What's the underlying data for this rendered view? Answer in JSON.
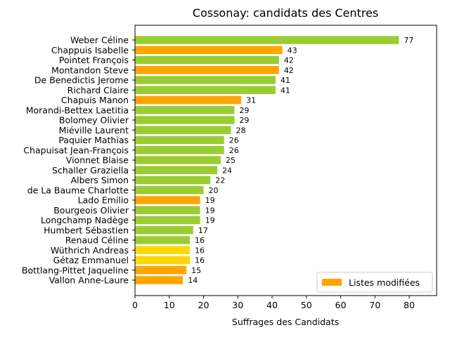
{
  "chart_data": {
    "type": "bar",
    "orientation": "horizontal",
    "title": "Cossonay: candidats des Centres",
    "xlabel": "Suffrages des Candidats",
    "ylabel": "",
    "xlim": [
      0,
      88
    ],
    "xticks": [
      0,
      10,
      20,
      30,
      40,
      50,
      60,
      70,
      80
    ],
    "grid": false,
    "legend": {
      "placement": "bottom-right",
      "entries": [
        {
          "label": "Listes modifiées",
          "color": "#ffa500"
        }
      ]
    },
    "colors": {
      "green": "#9acd32",
      "orange": "#ffa500",
      "gold": "#ffd700"
    },
    "bars": [
      {
        "name": "Weber Céline",
        "value": 77,
        "color": "green"
      },
      {
        "name": "Chappuis Isabelle",
        "value": 43,
        "color": "orange"
      },
      {
        "name": "Pointet François",
        "value": 42,
        "color": "green"
      },
      {
        "name": "Montandon Steve",
        "value": 42,
        "color": "orange"
      },
      {
        "name": "De Benedictis Jerome",
        "value": 41,
        "color": "green"
      },
      {
        "name": "Richard Claire",
        "value": 41,
        "color": "green"
      },
      {
        "name": "Chapuis Manon",
        "value": 31,
        "color": "orange"
      },
      {
        "name": "Morandi-Bettex Laetitia",
        "value": 29,
        "color": "green"
      },
      {
        "name": "Bolomey Olivier",
        "value": 29,
        "color": "green"
      },
      {
        "name": "Miéville Laurent",
        "value": 28,
        "color": "green"
      },
      {
        "name": "Paquier Mathias",
        "value": 26,
        "color": "green"
      },
      {
        "name": "Chapuisat Jean-François",
        "value": 26,
        "color": "green"
      },
      {
        "name": "Vionnet Blaise",
        "value": 25,
        "color": "green"
      },
      {
        "name": "Schaller Graziella",
        "value": 24,
        "color": "green"
      },
      {
        "name": "Albers Simon",
        "value": 22,
        "color": "green"
      },
      {
        "name": "de La Baume Charlotte",
        "value": 20,
        "color": "green"
      },
      {
        "name": "Lado Emilio",
        "value": 19,
        "color": "orange"
      },
      {
        "name": "Bourgeois Olivier",
        "value": 19,
        "color": "green"
      },
      {
        "name": "Longchamp Nadège",
        "value": 19,
        "color": "green"
      },
      {
        "name": "Humbert Sébastien",
        "value": 17,
        "color": "green"
      },
      {
        "name": "Renaud Céline",
        "value": 16,
        "color": "green"
      },
      {
        "name": "Wüthrich Andreas",
        "value": 16,
        "color": "gold"
      },
      {
        "name": "Gétaz Emmanuel",
        "value": 16,
        "color": "gold"
      },
      {
        "name": "Bottlang-Pittet Jaqueline",
        "value": 15,
        "color": "orange"
      },
      {
        "name": "Vallon Anne-Laure",
        "value": 14,
        "color": "orange"
      }
    ]
  }
}
